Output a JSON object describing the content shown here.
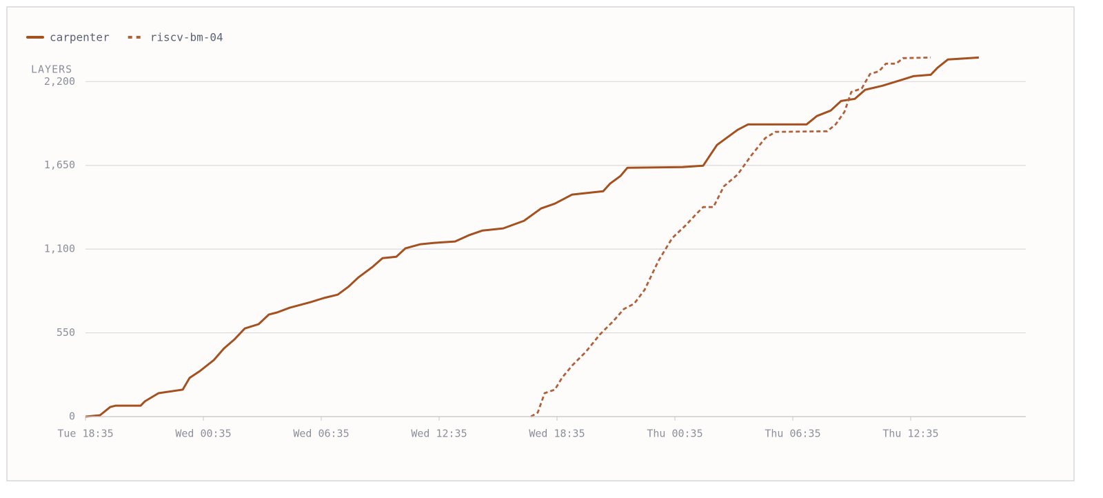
{
  "chart_data": {
    "type": "line",
    "y_label": "LAYERS",
    "xlim": [
      0,
      47.86
    ],
    "ylim": [
      0,
      2360
    ],
    "xticks": [
      {
        "value": 0,
        "label": "Tue 18:35"
      },
      {
        "value": 6,
        "label": "Wed 00:35"
      },
      {
        "value": 12,
        "label": "Wed 06:35"
      },
      {
        "value": 18,
        "label": "Wed 12:35"
      },
      {
        "value": 24,
        "label": "Wed 18:35"
      },
      {
        "value": 30,
        "label": "Thu 00:35"
      },
      {
        "value": 36,
        "label": "Thu 06:35"
      },
      {
        "value": 42,
        "label": "Thu 12:35"
      }
    ],
    "yticks": [
      0,
      550,
      {
        "value": 1100,
        "label": "1,100"
      },
      {
        "value": 1650,
        "label": "1,650"
      },
      {
        "value": 2200,
        "label": "2,200"
      }
    ],
    "grid": true,
    "series": [
      {
        "name": "carpenter",
        "color": "#a5501f",
        "dashed": false,
        "x": [
          0,
          0.74,
          1.26,
          1.54,
          2.81,
          3.02,
          3.72,
          4.95,
          5.3,
          5.82,
          6.53,
          7.05,
          7.58,
          8.11,
          8.81,
          9.33,
          9.75,
          10.39,
          11.44,
          12.14,
          12.84,
          13.37,
          13.89,
          14.6,
          15.12,
          15.82,
          16.28,
          17.05,
          17.75,
          18.81,
          19.51,
          20.21,
          21.26,
          22.32,
          23.19,
          23.89,
          24.77,
          26.35,
          26.7,
          27.23,
          27.58,
          30.39,
          31.44,
          32.14,
          33.19,
          33.72,
          36.7,
          37.23,
          37.93,
          38.46,
          39.16,
          39.68,
          40.56,
          41.61,
          42.14,
          43.02,
          43.37,
          43.89,
          45.47
        ],
        "values": [
          0,
          9,
          63,
          72,
          72,
          100,
          154,
          177,
          254,
          299,
          371,
          448,
          507,
          579,
          607,
          670,
          684,
          715,
          751,
          779,
          801,
          851,
          914,
          982,
          1041,
          1050,
          1105,
          1132,
          1141,
          1150,
          1191,
          1222,
          1236,
          1286,
          1367,
          1399,
          1458,
          1480,
          1530,
          1580,
          1634,
          1639,
          1648,
          1784,
          1883,
          1919,
          1919,
          1974,
          2010,
          2073,
          2087,
          2146,
          2173,
          2214,
          2236,
          2245,
          2291,
          2345,
          2358
        ]
      },
      {
        "name": "riscv-bm-04",
        "color": "#b0603a",
        "dashed": true,
        "x": [
          22.67,
          23.02,
          23.37,
          23.89,
          24.25,
          24.77,
          25.47,
          26.18,
          26.88,
          27.4,
          27.93,
          28.46,
          29.16,
          29.86,
          30.56,
          31.09,
          31.44,
          31.96,
          32.49,
          33.19,
          33.89,
          34.6,
          35.12,
          37.75,
          38.18,
          38.63,
          38.98,
          39.51,
          39.93,
          40.39,
          40.74,
          41.26,
          41.61,
          43.02
        ],
        "values": [
          0,
          27,
          154,
          177,
          254,
          335,
          426,
          539,
          629,
          706,
          742,
          833,
          1023,
          1172,
          1258,
          1331,
          1376,
          1376,
          1512,
          1589,
          1716,
          1829,
          1870,
          1874,
          1919,
          2001,
          2132,
          2155,
          2250,
          2268,
          2318,
          2318,
          2354,
          2358
        ]
      }
    ]
  }
}
